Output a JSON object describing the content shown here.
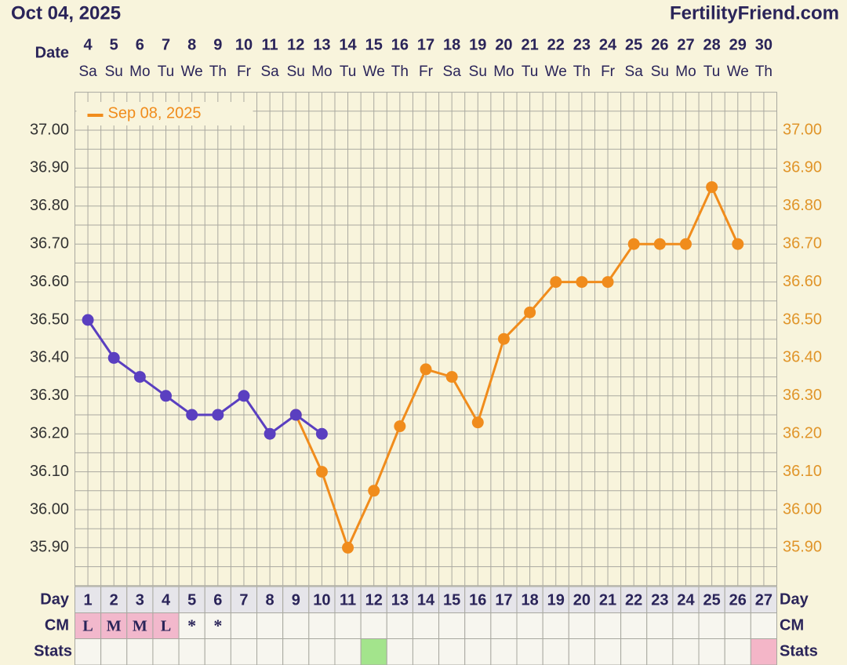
{
  "chart_data": {
    "type": "line",
    "title": "Oct 04, 2025",
    "source": "FertilityFriend.com",
    "row_labels": {
      "date": "Date",
      "day": "Day",
      "cm": "CM",
      "stats": "Stats"
    },
    "categories": [
      "4",
      "5",
      "6",
      "7",
      "8",
      "9",
      "10",
      "11",
      "12",
      "13",
      "14",
      "15",
      "16",
      "17",
      "18",
      "19",
      "20",
      "21",
      "22",
      "23",
      "24",
      "25",
      "26",
      "27",
      "28",
      "29",
      "30"
    ],
    "weekdays": [
      "Sa",
      "Su",
      "Mo",
      "Tu",
      "We",
      "Th",
      "Fr",
      "Sa",
      "Su",
      "Mo",
      "Tu",
      "We",
      "Th",
      "Fr",
      "Sa",
      "Su",
      "Mo",
      "Tu",
      "We",
      "Th",
      "Fr",
      "Sa",
      "Su",
      "Mo",
      "Tu",
      "We",
      "Th"
    ],
    "days": [
      1,
      2,
      3,
      4,
      5,
      6,
      7,
      8,
      9,
      10,
      11,
      12,
      13,
      14,
      15,
      16,
      17,
      18,
      19,
      20,
      21,
      22,
      23,
      24,
      25,
      26,
      27
    ],
    "cm": [
      "L",
      "M",
      "M",
      "L",
      "*",
      "*",
      null,
      null,
      null,
      null,
      null,
      null,
      null,
      null,
      null,
      null,
      null,
      null,
      null,
      null,
      null,
      null,
      null,
      null,
      null,
      null,
      null
    ],
    "cm_color": "#f2b8cc",
    "stats": [
      null,
      null,
      null,
      null,
      null,
      null,
      null,
      null,
      null,
      null,
      null,
      "#a3e48c",
      null,
      null,
      null,
      null,
      null,
      null,
      null,
      null,
      null,
      null,
      null,
      null,
      null,
      null,
      "#f4b6c8"
    ],
    "series": [
      {
        "name": "Sep 08, 2025",
        "color": "#f08c1c",
        "values": [
          null,
          null,
          null,
          null,
          null,
          null,
          null,
          null,
          36.25,
          36.1,
          35.9,
          36.05,
          36.22,
          36.37,
          36.35,
          36.23,
          36.45,
          36.52,
          36.6,
          36.6,
          36.6,
          36.7,
          36.7,
          36.7,
          36.85,
          36.7,
          null
        ]
      },
      {
        "color": "#5a3fc0",
        "values": [
          36.5,
          36.4,
          36.35,
          36.3,
          36.25,
          36.25,
          36.3,
          36.2,
          36.25,
          36.2,
          null,
          null,
          null,
          null,
          null,
          null,
          null,
          null,
          null,
          null,
          null,
          null,
          null,
          null,
          null,
          null,
          null
        ]
      }
    ],
    "ylim": [
      35.8,
      37.1
    ],
    "yticks": [
      {
        "value": 37.0,
        "label": "37.00"
      },
      {
        "value": 36.9,
        "label": "36.90"
      },
      {
        "value": 36.8,
        "label": "36.80"
      },
      {
        "value": 36.7,
        "label": "36.70"
      },
      {
        "value": 36.6,
        "label": "36.60"
      },
      {
        "value": 36.5,
        "label": "36.50"
      },
      {
        "value": 36.4,
        "label": "36.40"
      },
      {
        "value": 36.3,
        "label": "36.30"
      },
      {
        "value": 36.2,
        "label": "36.20"
      },
      {
        "value": 36.1,
        "label": "36.10"
      },
      {
        "value": 36.0,
        "label": "36.00"
      },
      {
        "value": 35.9,
        "label": "35.90"
      }
    ],
    "grid": true,
    "legend": "top-left"
  }
}
